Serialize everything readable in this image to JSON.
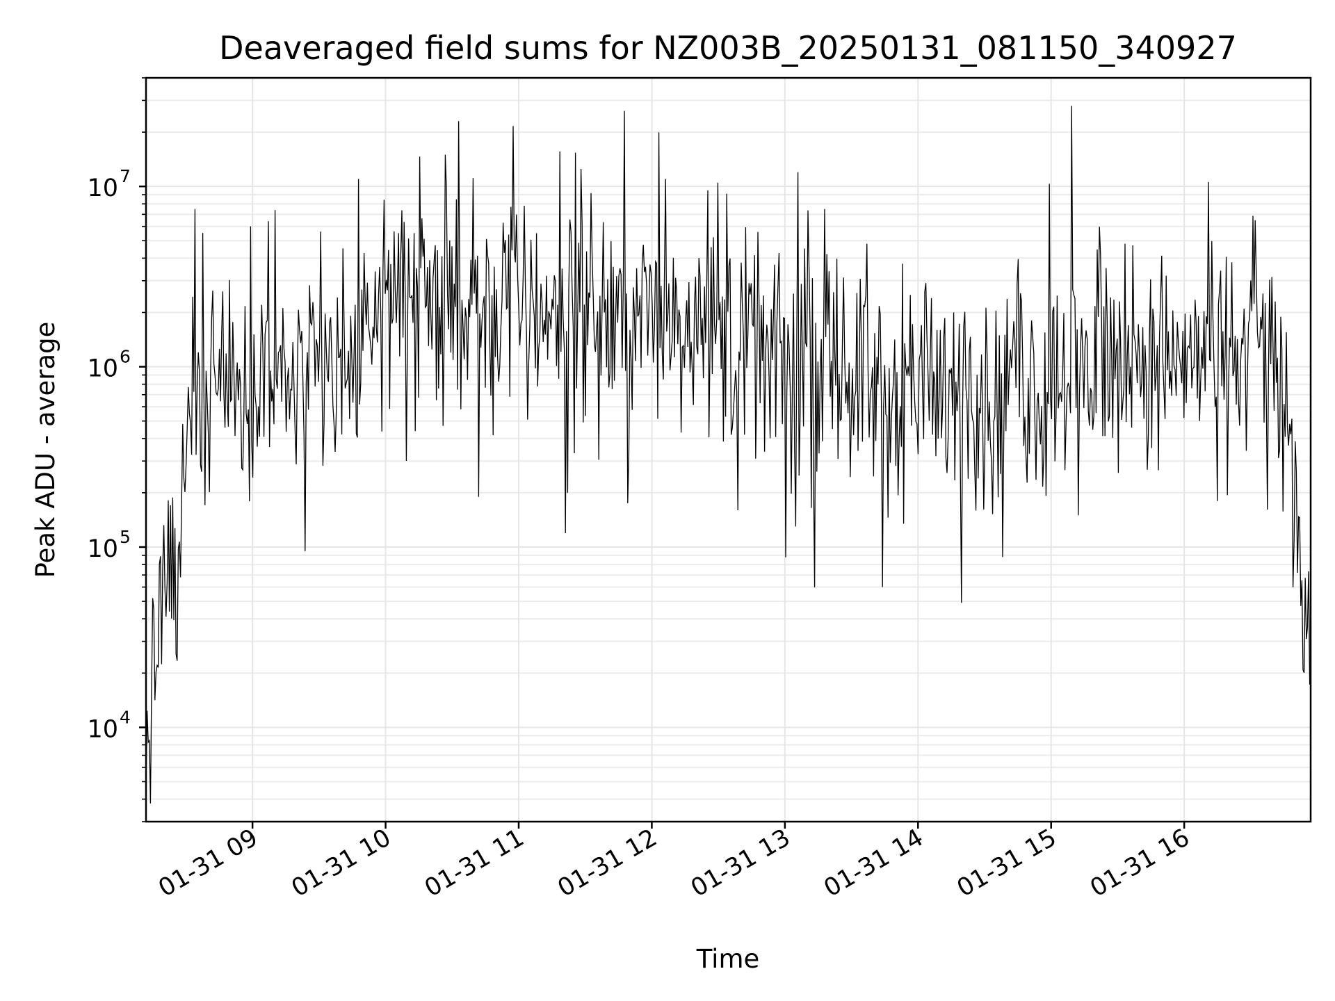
{
  "chart_data": {
    "type": "line",
    "title": "Deaveraged field sums for NZ003B_20250131_081150_340927",
    "xlabel": "Time",
    "ylabel": "Peak ADU - average",
    "yscale": "log",
    "grid": true,
    "ylim": [
      3000,
      40000000
    ],
    "xlim": [
      "2025-01-31T08:12:00",
      "2025-01-31T16:57:00"
    ],
    "x_ticks": [
      {
        "value": "2025-01-31T09:00:00",
        "label": "01-31 09"
      },
      {
        "value": "2025-01-31T10:00:00",
        "label": "01-31 10"
      },
      {
        "value": "2025-01-31T11:00:00",
        "label": "01-31 11"
      },
      {
        "value": "2025-01-31T12:00:00",
        "label": "01-31 12"
      },
      {
        "value": "2025-01-31T13:00:00",
        "label": "01-31 13"
      },
      {
        "value": "2025-01-31T14:00:00",
        "label": "01-31 14"
      },
      {
        "value": "2025-01-31T15:00:00",
        "label": "01-31 15"
      },
      {
        "value": "2025-01-31T16:00:00",
        "label": "01-31 16"
      }
    ],
    "y_ticks": [
      {
        "value": 10000,
        "base": "10",
        "exp": "4"
      },
      {
        "value": 100000,
        "base": "10",
        "exp": "5"
      },
      {
        "value": 1000000,
        "base": "10",
        "exp": "6"
      },
      {
        "value": 10000000,
        "base": "10",
        "exp": "7"
      }
    ],
    "series": [
      {
        "color": "#000000",
        "x": [
          "2025-01-31T08:12:00",
          "2025-01-31T08:13:00",
          "2025-01-31T08:15:00",
          "2025-01-31T08:17:00",
          "2025-01-31T08:19:00",
          "2025-01-31T08:21:00",
          "2025-01-31T08:24:00",
          "2025-01-31T08:26:00",
          "2025-01-31T08:28:00",
          "2025-01-31T08:30:00",
          "2025-01-31T08:32:00",
          "2025-01-31T08:35:00",
          "2025-01-31T08:38:00",
          "2025-01-31T08:40:00",
          "2025-01-31T08:42:00",
          "2025-01-31T08:45:00",
          "2025-01-31T08:50:00",
          "2025-01-31T08:55:00",
          "2025-01-31T09:00:00",
          "2025-01-31T09:05:00",
          "2025-01-31T09:08:00",
          "2025-01-31T09:12:00",
          "2025-01-31T09:18:00",
          "2025-01-31T09:25:00",
          "2025-01-31T09:30:00",
          "2025-01-31T09:35:00",
          "2025-01-31T09:40:00",
          "2025-01-31T09:45:00",
          "2025-01-31T09:50:00",
          "2025-01-31T09:55:00",
          "2025-01-31T10:00:00",
          "2025-01-31T10:10:00",
          "2025-01-31T10:15:00",
          "2025-01-31T10:20:00",
          "2025-01-31T10:25:00",
          "2025-01-31T10:30:00",
          "2025-01-31T10:35:00",
          "2025-01-31T10:40:00",
          "2025-01-31T10:45:00",
          "2025-01-31T10:50:00",
          "2025-01-31T11:00:00",
          "2025-01-31T11:10:00",
          "2025-01-31T11:20:00",
          "2025-01-31T11:25:00",
          "2025-01-31T11:30:00",
          "2025-01-31T11:40:00",
          "2025-01-31T11:50:00",
          "2025-01-31T12:00:00",
          "2025-01-31T12:05:00",
          "2025-01-31T12:10:00",
          "2025-01-31T12:20:00",
          "2025-01-31T12:30:00",
          "2025-01-31T12:40:00",
          "2025-01-31T12:50:00",
          "2025-01-31T13:00:00",
          "2025-01-31T13:10:00",
          "2025-01-31T13:20:00",
          "2025-01-31T13:30:00",
          "2025-01-31T13:40:00",
          "2025-01-31T13:45:00",
          "2025-01-31T13:50:00",
          "2025-01-31T14:00:00",
          "2025-01-31T14:10:00",
          "2025-01-31T14:20:00",
          "2025-01-31T14:30:00",
          "2025-01-31T14:40:00",
          "2025-01-31T14:50:00",
          "2025-01-31T15:00:00",
          "2025-01-31T15:05:00",
          "2025-01-31T15:10:00",
          "2025-01-31T15:15:00",
          "2025-01-31T15:20:00",
          "2025-01-31T15:30:00",
          "2025-01-31T15:40:00",
          "2025-01-31T15:50:00",
          "2025-01-31T16:00:00",
          "2025-01-31T16:10:00",
          "2025-01-31T16:20:00",
          "2025-01-31T16:30:00",
          "2025-01-31T16:35:00",
          "2025-01-31T16:40:00",
          "2025-01-31T16:43:00",
          "2025-01-31T16:46:00",
          "2025-01-31T16:49:00",
          "2025-01-31T16:52:00",
          "2025-01-31T16:55:00",
          "2025-01-31T16:57:00"
        ],
        "y": [
          5000,
          12000,
          20000,
          30000,
          45000,
          60000,
          80000,
          40000,
          150000,
          300000,
          500000,
          700000,
          800000,
          750000,
          900000,
          800000,
          850000,
          700000,
          900000,
          1000000,
          850000,
          750000,
          900000,
          1000000,
          700000,
          800000,
          700000,
          900000,
          1200000,
          1900000,
          2500000,
          2700000,
          3000000,
          2300000,
          2200000,
          2000000,
          2100000,
          1800000,
          2000000,
          2100000,
          2400000,
          2200000,
          2000000,
          2100000,
          2100000,
          1900000,
          1800000,
          1700000,
          1900000,
          2100000,
          2200000,
          1500000,
          1300000,
          1200000,
          1000000,
          1100000,
          1000000,
          900000,
          800000,
          700000,
          750000,
          800000,
          750000,
          700000,
          750000,
          700000,
          800000,
          900000,
          1000000,
          1100000,
          1000000,
          900000,
          1100000,
          1300000,
          1200000,
          1000000,
          1300000,
          1100000,
          1300000,
          1500000,
          1300000,
          800000,
          500000,
          200000,
          100000,
          50000,
          20000
        ]
      }
    ],
    "spikes": [
      {
        "x": "2025-01-31T08:34:00",
        "y": 7500000
      },
      {
        "x": "2025-01-31T09:10:00",
        "y": 7400000
      },
      {
        "x": "2025-01-31T09:48:00",
        "y": 11000000
      },
      {
        "x": "2025-01-31T10:27:00",
        "y": 15000000
      },
      {
        "x": "2025-01-31T10:33:00",
        "y": 23000000
      },
      {
        "x": "2025-01-31T11:28:00",
        "y": 12500000
      },
      {
        "x": "2025-01-31T12:06:00",
        "y": 11000000
      },
      {
        "x": "2025-01-31T12:30:00",
        "y": 10500000
      },
      {
        "x": "2025-01-31T13:18:00",
        "y": 7500000
      },
      {
        "x": "2025-01-31T15:09:00",
        "y": 28000000
      },
      {
        "x": "2025-01-31T16:32:00",
        "y": 6500000
      },
      {
        "x": "2025-01-31T10:42:00",
        "y": 190000
      },
      {
        "x": "2025-01-31T11:22:00",
        "y": 200000
      },
      {
        "x": "2025-01-31T11:49:00",
        "y": 175000
      },
      {
        "x": "2025-01-31T12:39:00",
        "y": 160000
      },
      {
        "x": "2025-01-31T13:05:00",
        "y": 130000
      },
      {
        "x": "2025-01-31T13:44:00",
        "y": 60000
      },
      {
        "x": "2025-01-31T14:38:00",
        "y": 88000
      },
      {
        "x": "2025-01-31T15:12:00",
        "y": 150000
      },
      {
        "x": "2025-01-31T16:15:00",
        "y": 180000
      }
    ]
  }
}
